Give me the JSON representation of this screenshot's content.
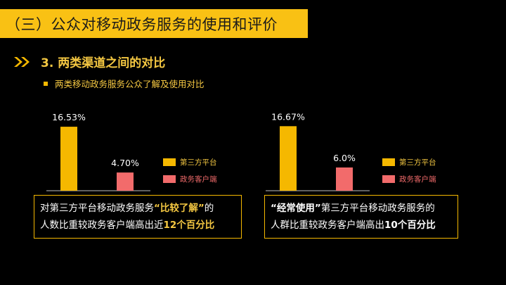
{
  "header": {
    "title": "（三）公众对移动政务服务的使用和评价"
  },
  "section": {
    "number_title": "3. 两类渠道之间的对比"
  },
  "bullet": {
    "text": "两类移动政务服务公众了解及使用对比"
  },
  "colors": {
    "accent": "#f9c114",
    "third_party": "#f5b800",
    "gov_client": "#f26b6b"
  },
  "chart_data": [
    {
      "type": "bar",
      "categories": [
        "第三方平台",
        "政务客户端"
      ],
      "values": [
        16.53,
        4.7
      ],
      "value_labels": [
        "16.53%",
        "4.70%"
      ],
      "legend": [
        "第三方平台",
        "政务客户端"
      ],
      "legend_position": "right",
      "ylim": [
        0,
        20
      ]
    },
    {
      "type": "bar",
      "categories": [
        "第三方平台",
        "政务客户端"
      ],
      "values": [
        16.67,
        6.0
      ],
      "value_labels": [
        "16.67%",
        "6.0%"
      ],
      "legend": [
        "第三方平台",
        "政务客户端"
      ],
      "legend_position": "right",
      "ylim": [
        0,
        20
      ]
    }
  ],
  "notes": {
    "left": {
      "l1a": "对第三方平台移动政务服务",
      "l1b": "“比较了解”",
      "l1c": "的",
      "l2a": "人数比重较政务客户端高出近",
      "l2b": "12个百分比"
    },
    "right": {
      "l1a": "“经常使用”",
      "l1b": "第三方平台移动政务服务的",
      "l2a": "人群比重较政务客户端高出",
      "l2b": "10个百分比"
    }
  }
}
